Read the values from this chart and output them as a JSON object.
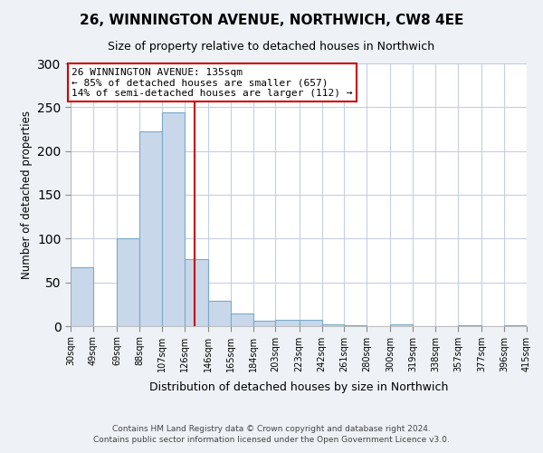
{
  "title": "26, WINNINGTON AVENUE, NORTHWICH, CW8 4EE",
  "subtitle": "Size of property relative to detached houses in Northwich",
  "xlabel": "Distribution of detached houses by size in Northwich",
  "ylabel": "Number of detached properties",
  "footer_line1": "Contains HM Land Registry data © Crown copyright and database right 2024.",
  "footer_line2": "Contains public sector information licensed under the Open Government Licence v3.0.",
  "bin_edges": [
    30,
    49,
    69,
    88,
    107,
    126,
    146,
    165,
    184,
    203,
    223,
    242,
    261,
    280,
    300,
    319,
    338,
    357,
    377,
    396,
    415
  ],
  "bin_counts": [
    67,
    0,
    100,
    222,
    244,
    77,
    29,
    14,
    6,
    7,
    7,
    2,
    1,
    0,
    2,
    0,
    0,
    1,
    0,
    1
  ],
  "bar_facecolor": "#c8d8ea",
  "bar_edgecolor": "#7aaac8",
  "property_size": 135,
  "vline_color": "#cc0000",
  "annotation_box_edgecolor": "#cc0000",
  "annotation_line1": "26 WINNINGTON AVENUE: 135sqm",
  "annotation_line2": "← 85% of detached houses are smaller (657)",
  "annotation_line3": "14% of semi-detached houses are larger (112) →",
  "ylim": [
    0,
    300
  ],
  "yticks": [
    0,
    50,
    100,
    150,
    200,
    250,
    300
  ],
  "x_tick_labels": [
    "30sqm",
    "49sqm",
    "69sqm",
    "88sqm",
    "107sqm",
    "126sqm",
    "146sqm",
    "165sqm",
    "184sqm",
    "203sqm",
    "223sqm",
    "242sqm",
    "261sqm",
    "280sqm",
    "300sqm",
    "319sqm",
    "338sqm",
    "357sqm",
    "377sqm",
    "396sqm",
    "415sqm"
  ],
  "background_color": "#eef2f7",
  "plot_background_color": "#ffffff",
  "grid_color": "#c5cfe0"
}
